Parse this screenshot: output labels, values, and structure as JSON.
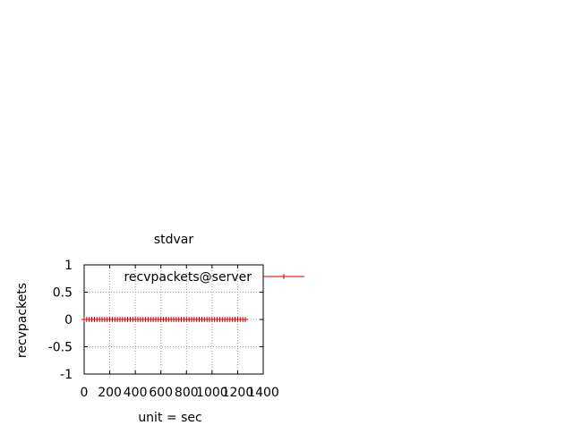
{
  "chart_data": {
    "type": "line",
    "title": "stdvar",
    "xlabel": "unit = sec",
    "ylabel": "recvpackets",
    "xlim": [
      0,
      1400
    ],
    "ylim": [
      -1,
      1
    ],
    "x_ticks": [
      "0",
      "200",
      "400",
      "600",
      "800",
      "1000",
      "1200",
      "1400"
    ],
    "x_tick_values": [
      0,
      200,
      400,
      600,
      800,
      1000,
      1200,
      1400
    ],
    "y_ticks": [
      "1",
      "0.5",
      "0",
      "-0.5",
      "-1"
    ],
    "y_tick_values": [
      1,
      0.5,
      0,
      -0.5,
      -1
    ],
    "grid": true,
    "legend_position": "outside-top-right",
    "series": [
      {
        "name": "recvpackets@server",
        "color": "#cc0000",
        "marker": "plus",
        "x": [
          0,
          20,
          40,
          60,
          80,
          100,
          120,
          140,
          160,
          180,
          200,
          220,
          240,
          260,
          280,
          300,
          320,
          340,
          360,
          380,
          400,
          420,
          440,
          460,
          480,
          500,
          520,
          540,
          560,
          580,
          600,
          620,
          640,
          660,
          680,
          700,
          720,
          740,
          760,
          780,
          800,
          820,
          840,
          860,
          880,
          900,
          920,
          940,
          960,
          980,
          1000,
          1020,
          1040,
          1060,
          1080,
          1100,
          1120,
          1140,
          1160,
          1180,
          1200,
          1220,
          1240,
          1260
        ],
        "y": [
          0,
          0,
          0,
          0,
          0,
          0,
          0,
          0,
          0,
          0,
          0,
          0,
          0,
          0,
          0,
          0,
          0,
          0,
          0,
          0,
          0,
          0,
          0,
          0,
          0,
          0,
          0,
          0,
          0,
          0,
          0,
          0,
          0,
          0,
          0,
          0,
          0,
          0,
          0,
          0,
          0,
          0,
          0,
          0,
          0,
          0,
          0,
          0,
          0,
          0,
          0,
          0,
          0,
          0,
          0,
          0,
          0,
          0,
          0,
          0,
          0,
          0,
          0,
          0
        ]
      }
    ]
  }
}
